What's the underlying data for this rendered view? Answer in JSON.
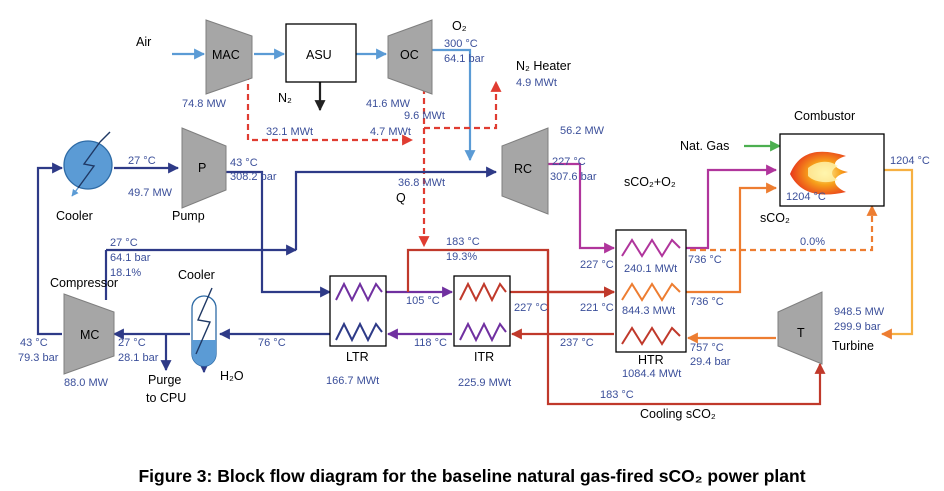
{
  "caption": "Figure 3: Block flow diagram for the baseline natural gas-fired sCO₂ power plant",
  "equipment": {
    "mac": "MAC",
    "asu": "ASU",
    "oc": "OC",
    "pump": "P",
    "rc": "RC",
    "mc": "MC",
    "turbine_symbol": "T",
    "ltr": "LTR",
    "itr": "ITR",
    "htr": "HTR"
  },
  "names": {
    "air": "Air",
    "o2": "O₂",
    "n2": "N₂",
    "n2_heater": "N₂ Heater",
    "combustor": "Combustor",
    "nat_gas": "Nat. Gas",
    "cooler_left": "Cooler",
    "pump": "Pump",
    "compressor": "Compressor",
    "cooler_mid": "Cooler",
    "purge_1": "Purge",
    "purge_2": "to CPU",
    "h2o": "H₂O",
    "turbine": "Turbine",
    "cooling_sco2": "Cooling sCO₂",
    "q": "Q",
    "sco2_o2": "sCO₂+O₂",
    "sco2": "sCO₂"
  },
  "values": {
    "mac_power": "74.8 MW",
    "oc_power": "41.6 MW",
    "o2_temp": "300 °C",
    "o2_pressure": "64.1 bar",
    "n2_heater_duty": "4.9 MWt",
    "n2_heat": "9.6 MWt",
    "q_mac": "32.1 MWt",
    "q_oc": "4.7 MWt",
    "rc_power": "56.2 MW",
    "rc_out_temp": "227 °C",
    "rc_out_pressure": "307.6 bar",
    "q_total": "36.8 MWt",
    "cooler_temp": "27 °C",
    "cooler_duty": "49.7 MW",
    "pump_out_temp": "43 °C",
    "pump_out_pressure": "308.2 bar",
    "split_temp": "27 °C",
    "split_pressure": "64.1 bar",
    "split_fraction": "18.1%",
    "mc_out_temp": "43 °C",
    "mc_out_pressure": "79.3 bar",
    "mc_power": "88.0 MW",
    "mc_in_temp": "27 °C",
    "mc_in_pressure": "28.1 bar",
    "ltr_out_temp": "76 °C",
    "ltr_duty": "166.7 MWt",
    "itr_cold_in_temp": "105 °C",
    "itr_hot_out_temp": "118 °C",
    "itr_duty": "225.9 MWt",
    "itr_bypass_temp": "183 °C",
    "itr_bypass_fraction": "19.3%",
    "itr_temp_227": "227 °C",
    "htr_in_temp_221": "221 °C",
    "htr_hot_out_temp": "237 °C",
    "cooling_temp": "183 °C",
    "htr_o2_in_temp": "227 °C",
    "htr_top_duty": "240.1 MWt",
    "htr_top_out_temp": "736 °C",
    "htr_mid_duty": "844.3 MWt",
    "htr_mid_out_temp": "736 °C",
    "htr_bot_duty": "1084.4 MWt",
    "turbine_exh_temp": "757 °C",
    "turbine_exh_pressure": "29.4 bar",
    "combustor_temp": "1204 °C",
    "combustor_out_temp": "1204 °C",
    "turbine_power": "948.5 MW",
    "turbine_in_pressure": "299.9 bar",
    "cooling_fraction": "0.0%"
  },
  "colors": {
    "blue_stream": "#5b9bd5",
    "co2_stream": "#2e3a87",
    "purple_stream": "#7030a0",
    "magenta_stream": "#b0359c",
    "red_stream": "#e03c31",
    "dark_red_stream": "#c0392b",
    "orange_stream": "#ed7d31",
    "yellow_stream": "#f6b042",
    "green_stream": "#4caf50",
    "label_text": "#3b4f9a",
    "equipment_fill": "#a6a6a6",
    "cooler_fill": "#5b9bd5"
  }
}
